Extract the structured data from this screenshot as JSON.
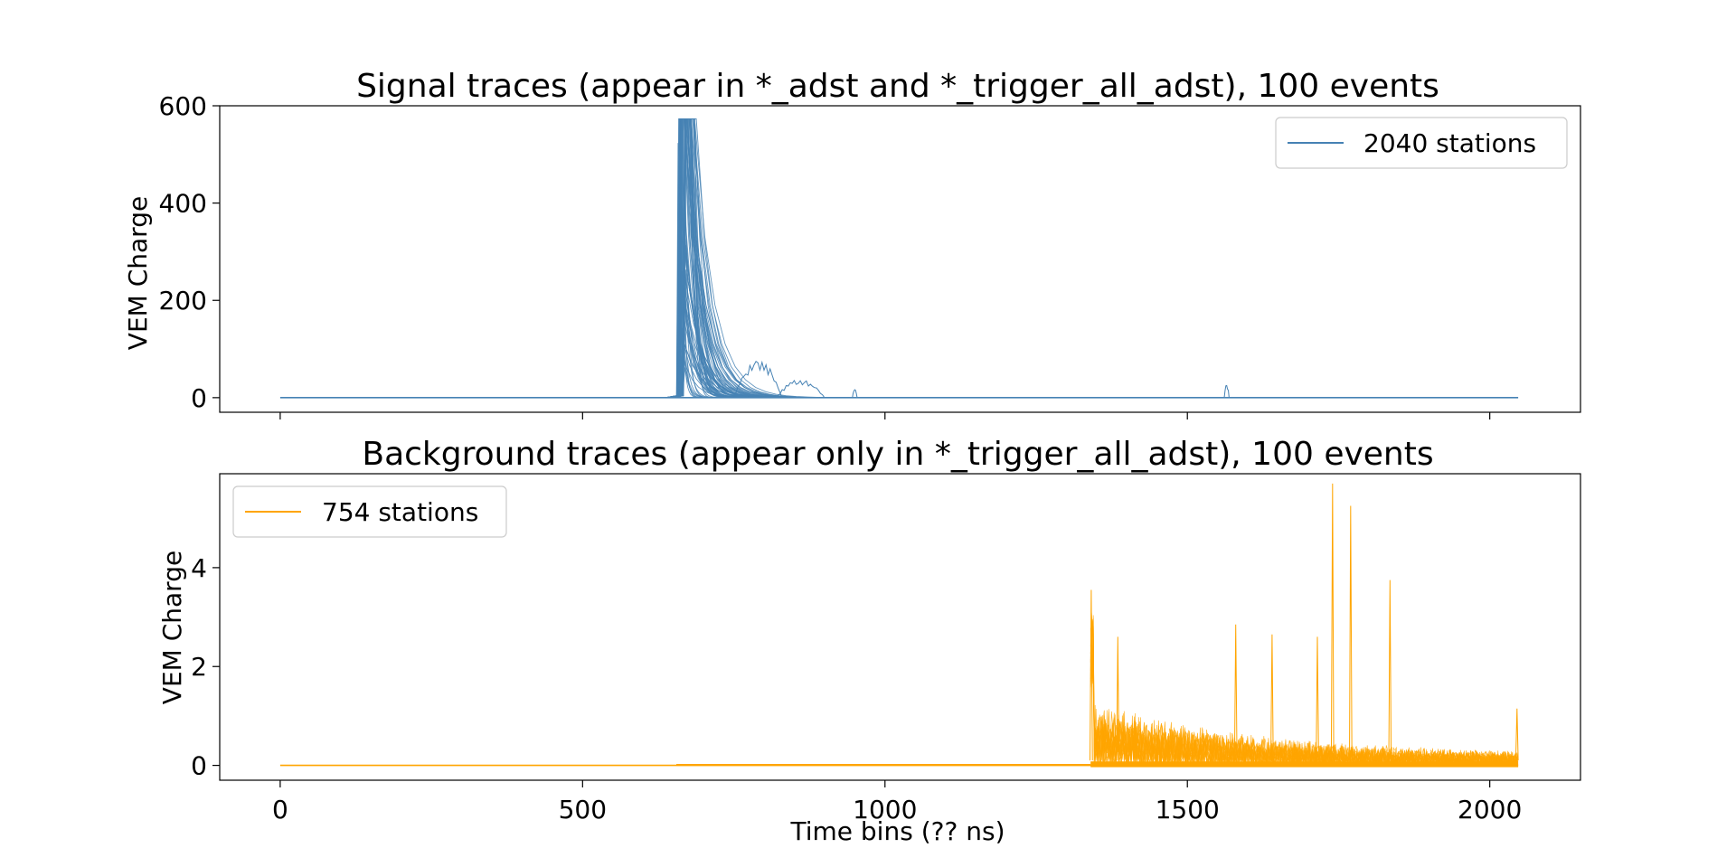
{
  "chart_data": [
    {
      "type": "line",
      "title": "Signal traces (appear in *_adst and *_trigger_all_adst), 100 events",
      "xlabel": "",
      "ylabel": "VEM Charge",
      "xlim": [
        -100,
        2150
      ],
      "ylim": [
        -30,
        600
      ],
      "xticks": [
        0,
        500,
        1000,
        1500,
        2000
      ],
      "xtick_labels_visible": false,
      "yticks": [
        0,
        200,
        400,
        600
      ],
      "ytick_labels": [
        "0",
        "200",
        "400",
        "600"
      ],
      "legend": {
        "placement": "top-right",
        "entries": [
          "2040 stations"
        ]
      },
      "grid": false,
      "color": "#4682b4",
      "series": [
        {
          "name": "2040 stations",
          "x_range": [
            0,
            2047
          ],
          "baseline": 0,
          "saturation": 573,
          "features": [
            {
              "kind": "saturated-peaks",
              "x_start": 655,
              "x_end": 720,
              "peak": 573
            },
            {
              "kind": "bump",
              "x": 790,
              "peak": 80
            },
            {
              "kind": "bump",
              "x": 860,
              "peak": 38
            },
            {
              "kind": "spike",
              "x": 950,
              "peak": 20
            },
            {
              "kind": "spike",
              "x": 1565,
              "peak": 28
            }
          ]
        }
      ]
    },
    {
      "type": "line",
      "title": "Background traces (appear only in *_trigger_all_adst), 100 events",
      "xlabel": "Time bins (?? ns)",
      "ylabel": "VEM Charge",
      "xlim": [
        -100,
        2150
      ],
      "ylim": [
        -0.3,
        5.9
      ],
      "xticks": [
        0,
        500,
        1000,
        1500,
        2000
      ],
      "xtick_labels": [
        "0",
        "500",
        "1000",
        "1500",
        "2000"
      ],
      "yticks": [
        0,
        2,
        4
      ],
      "ytick_labels": [
        "0",
        "2",
        "4"
      ],
      "legend": {
        "placement": "top-left",
        "entries": [
          "754 stations"
        ]
      },
      "grid": false,
      "color": "#ffa500",
      "series": [
        {
          "name": "754 stations",
          "x_range": [
            0,
            2047
          ],
          "baseline": 0,
          "noise_onset": 1340,
          "features": [
            {
              "kind": "spike",
              "x": 1341,
              "peak": 3.55
            },
            {
              "kind": "spike",
              "x": 1385,
              "peak": 2.6
            },
            {
              "kind": "spike",
              "x": 1580,
              "peak": 2.85
            },
            {
              "kind": "spike",
              "x": 1640,
              "peak": 2.65
            },
            {
              "kind": "spike",
              "x": 1715,
              "peak": 2.6
            },
            {
              "kind": "spike",
              "x": 1740,
              "peak": 5.7
            },
            {
              "kind": "spike",
              "x": 1770,
              "peak": 5.25
            },
            {
              "kind": "spike",
              "x": 1835,
              "peak": 3.75
            },
            {
              "kind": "spike",
              "x": 2045,
              "peak": 1.15
            }
          ]
        }
      ]
    }
  ]
}
